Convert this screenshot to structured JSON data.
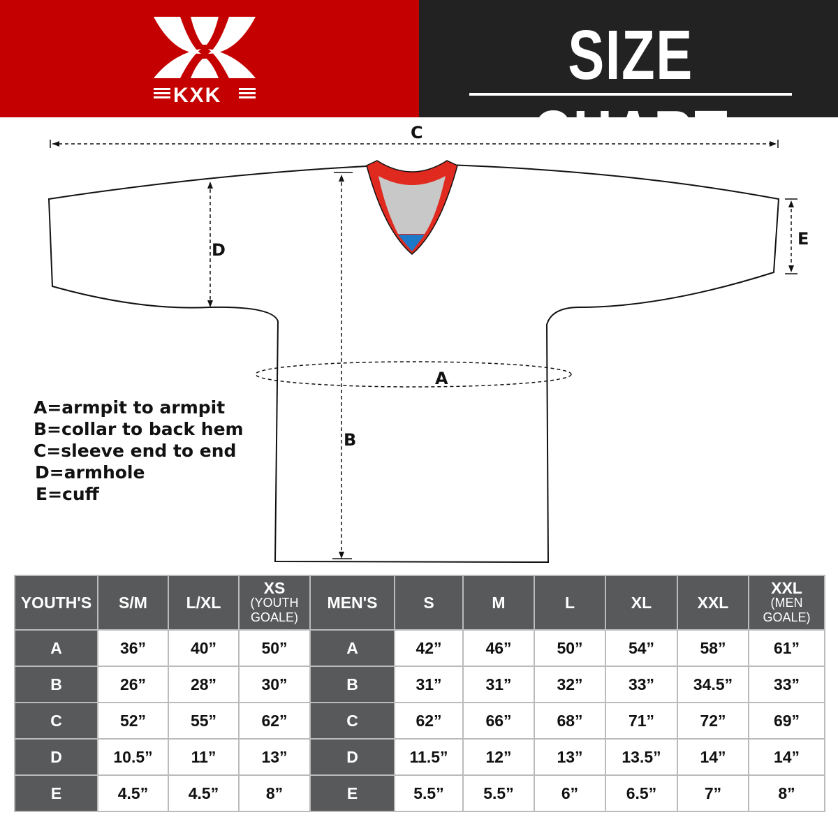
{
  "brand": {
    "logo_text": "KXK",
    "colors": {
      "red": "#c50000",
      "dark": "#222222",
      "table_header": "#58595b"
    }
  },
  "title": "SIZE CHART",
  "diagram": {
    "labels": {
      "a": "A",
      "b": "B",
      "c": "C",
      "d": "D",
      "e": "E"
    }
  },
  "legend": [
    "A=armpit to armpit",
    "B=collar to back hem",
    "C=sleeve end to end",
    "D=armhole",
    "E=cuff"
  ],
  "table": {
    "headers": [
      {
        "main": "YOUTH'S"
      },
      {
        "main": "S/M"
      },
      {
        "main": "L/XL"
      },
      {
        "main": "XS",
        "sub1": "(YOUTH",
        "sub2": "GOALE)"
      },
      {
        "main": "MEN'S"
      },
      {
        "main": "S"
      },
      {
        "main": "M"
      },
      {
        "main": "L"
      },
      {
        "main": "XL"
      },
      {
        "main": "XXL"
      },
      {
        "main": "XXL",
        "sub1": "(MEN",
        "sub2": "GOALE)"
      }
    ],
    "rows": [
      [
        "A",
        "36”",
        "40”",
        "50”",
        "A",
        "42”",
        "46”",
        "50”",
        "54”",
        "58”",
        "61”"
      ],
      [
        "B",
        "26”",
        "28”",
        "30”",
        "B",
        "31”",
        "31”",
        "32”",
        "33”",
        "34.5”",
        "33”"
      ],
      [
        "C",
        "52”",
        "55”",
        "62”",
        "C",
        "62”",
        "66”",
        "68”",
        "71”",
        "72”",
        "69”"
      ],
      [
        "D",
        "10.5”",
        "11”",
        "13”",
        "D",
        "11.5”",
        "12”",
        "13”",
        "13.5”",
        "14”",
        "14”"
      ],
      [
        "E",
        "4.5”",
        "4.5”",
        "8”",
        "E",
        "5.5”",
        "5.5”",
        "6”",
        "6.5”",
        "7”",
        "8”"
      ]
    ]
  }
}
